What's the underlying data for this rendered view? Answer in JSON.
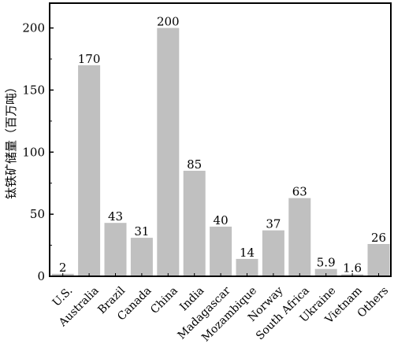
{
  "chart_data": {
    "type": "bar",
    "ylabel": "钛铁矿储量（百万吨）",
    "xlabel": "",
    "ylim": [
      0,
      220
    ],
    "yticks": [
      0,
      50,
      100,
      150,
      200
    ],
    "grid": false,
    "legend": "none",
    "bar_color": "#c0c0c0",
    "categories": [
      "U.S.",
      "Australia",
      "Brazil",
      "Canada",
      "China",
      "India",
      "Madagascar",
      "Mozambique",
      "Norway",
      "South Africa",
      "Ukraine",
      "Vietnam",
      "Others"
    ],
    "values": [
      2,
      170,
      43,
      31,
      200,
      85,
      40,
      14,
      37,
      63,
      5.9,
      1.6,
      26
    ],
    "data_labels": [
      "2",
      "170",
      "43",
      "31",
      "200",
      "85",
      "40",
      "14",
      "37",
      "63",
      "5.9",
      "1.6",
      "26"
    ]
  }
}
